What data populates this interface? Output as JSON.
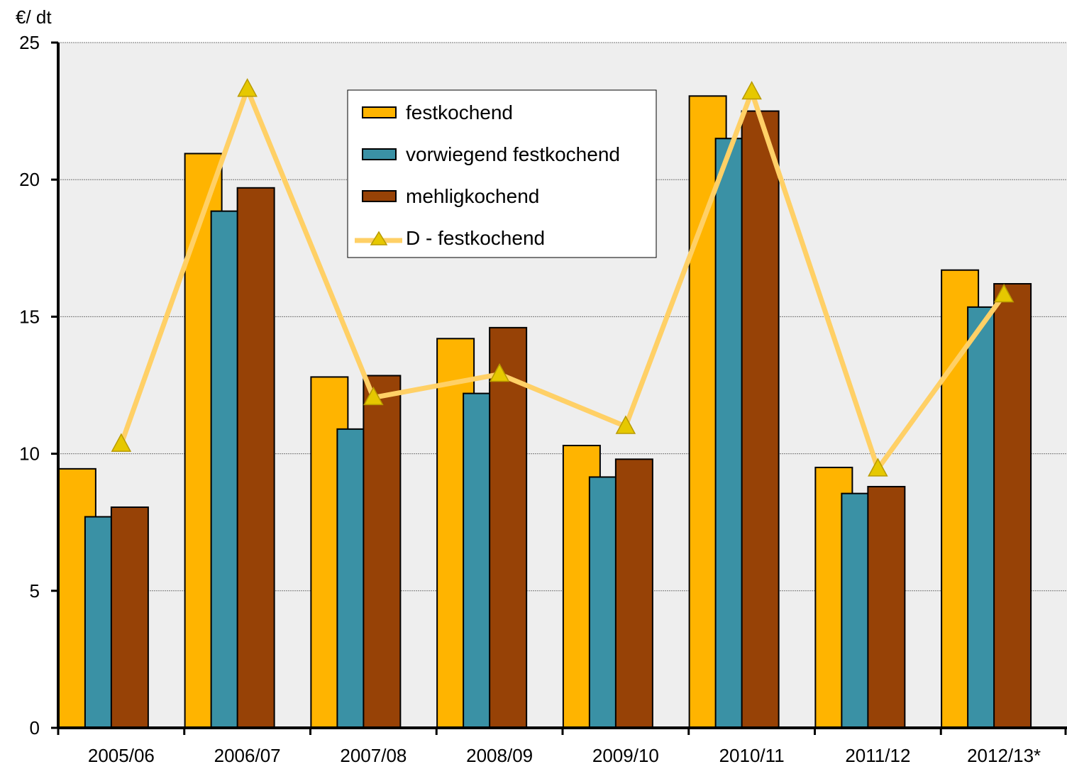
{
  "chart_data": {
    "type": "bar",
    "ylabel": "€/ dt",
    "ylim": [
      0,
      25
    ],
    "yticks": [
      0,
      5,
      10,
      15,
      20,
      25
    ],
    "grid": true,
    "legend_position": "top-center",
    "categories": [
      "2005/06",
      "2006/07",
      "2007/08",
      "2008/09",
      "2009/10",
      "2010/11",
      "2011/12",
      "2012/13*"
    ],
    "series": [
      {
        "name": "festkochend",
        "kind": "bar",
        "color": "#FFB400",
        "values": [
          9.45,
          20.95,
          12.8,
          14.2,
          10.3,
          23.05,
          9.5,
          16.7
        ]
      },
      {
        "name": "vorwiegend festkochend",
        "kind": "bar",
        "color": "#3A91A5",
        "values": [
          7.7,
          18.85,
          10.9,
          12.2,
          9.15,
          21.5,
          8.55,
          15.35
        ]
      },
      {
        "name": "mehligkochend",
        "kind": "bar",
        "color": "#974206",
        "values": [
          8.05,
          19.7,
          12.85,
          14.6,
          9.8,
          22.5,
          8.8,
          16.2
        ]
      },
      {
        "name": "D - festkochend",
        "kind": "line",
        "color": "#FFD066",
        "marker_color": "#E6C800",
        "values": [
          10.35,
          23.3,
          12.05,
          12.9,
          11.0,
          23.2,
          9.45,
          15.8
        ]
      }
    ]
  }
}
